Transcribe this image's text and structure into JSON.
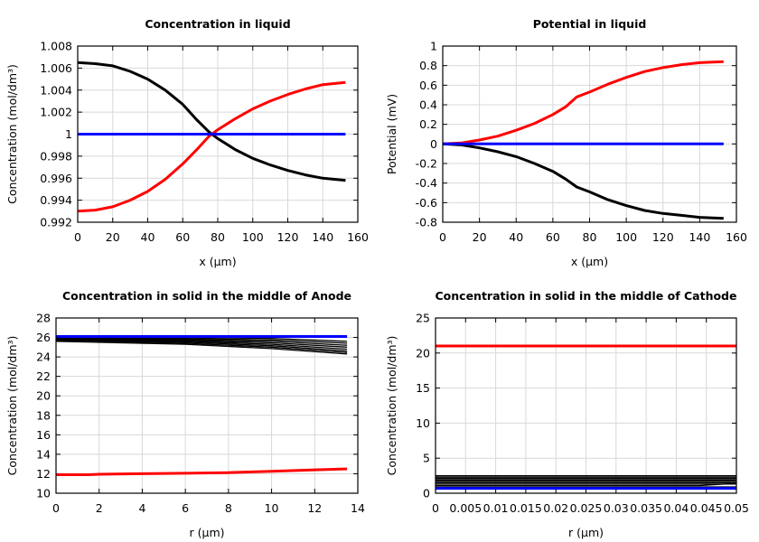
{
  "chart_data": [
    {
      "type": "line",
      "title": "Concentration in liquid",
      "xlabel": "x (µm)",
      "ylabel": "Concentration (mol/dm³)",
      "xlim": [
        0,
        160
      ],
      "ylim": [
        0.992,
        1.008
      ],
      "xticks": [
        0,
        20,
        40,
        60,
        80,
        100,
        120,
        140,
        160
      ],
      "xtick_labels": [
        "0",
        "20",
        "40",
        "60",
        "80",
        "100",
        "120",
        "140",
        "160"
      ],
      "yticks": [
        0.992,
        0.994,
        0.996,
        0.998,
        1,
        1.002,
        1.004,
        1.006,
        1.008
      ],
      "ytick_labels": [
        "0.992",
        "0.994",
        "0.996",
        "0.998",
        "1",
        "1.002",
        "1.004",
        "1.006",
        "1.008"
      ],
      "grid": true,
      "series": [
        {
          "color": "#000000",
          "x": [
            0,
            10,
            20,
            30,
            40,
            50,
            60,
            68,
            75,
            80,
            90,
            100,
            110,
            120,
            130,
            140,
            153
          ],
          "y": [
            1.0065,
            1.0064,
            1.0062,
            1.0057,
            1.005,
            1.004,
            1.0027,
            1.0013,
            1.0002,
            0.9996,
            0.9986,
            0.9978,
            0.9972,
            0.9967,
            0.9963,
            0.996,
            0.9958
          ]
        },
        {
          "color": "#ff0000",
          "x": [
            0,
            10,
            20,
            30,
            40,
            50,
            60,
            68,
            75,
            80,
            90,
            100,
            110,
            120,
            130,
            140,
            153
          ],
          "y": [
            0.993,
            0.9931,
            0.9934,
            0.994,
            0.9948,
            0.9959,
            0.9973,
            0.9986,
            0.9998,
            1.0004,
            1.0014,
            1.0023,
            1.003,
            1.0036,
            1.0041,
            1.0045,
            1.0047
          ]
        },
        {
          "color": "#0000ff",
          "x": [
            0,
            153
          ],
          "y": [
            1,
            1
          ]
        }
      ]
    },
    {
      "type": "line",
      "title": "Potential in liquid",
      "xlabel": "x (µm)",
      "ylabel": "Potential (mV)",
      "xlim": [
        0,
        160
      ],
      "ylim": [
        -0.8,
        1
      ],
      "xticks": [
        0,
        20,
        40,
        60,
        80,
        100,
        120,
        140,
        160
      ],
      "xtick_labels": [
        "0",
        "20",
        "40",
        "60",
        "80",
        "100",
        "120",
        "140",
        "160"
      ],
      "yticks": [
        -0.8,
        -0.6,
        -0.4,
        -0.2,
        0,
        0.2,
        0.4,
        0.6,
        0.8,
        1
      ],
      "ytick_labels": [
        "-0.8",
        "-0.6",
        "-0.4",
        "-0.2",
        "0",
        "0.2",
        "0.4",
        "0.6",
        "0.8",
        "1"
      ],
      "grid": true,
      "series": [
        {
          "color": "#ff0000",
          "x": [
            0,
            10,
            20,
            30,
            40,
            50,
            60,
            67,
            73,
            80,
            90,
            100,
            110,
            120,
            130,
            140,
            153
          ],
          "y": [
            0,
            0.01,
            0.04,
            0.08,
            0.14,
            0.21,
            0.3,
            0.38,
            0.48,
            0.53,
            0.61,
            0.68,
            0.74,
            0.78,
            0.81,
            0.83,
            0.84
          ]
        },
        {
          "color": "#000000",
          "x": [
            0,
            10,
            20,
            30,
            40,
            50,
            60,
            67,
            73,
            80,
            90,
            100,
            110,
            120,
            130,
            140,
            153
          ],
          "y": [
            0,
            -0.01,
            -0.04,
            -0.08,
            -0.13,
            -0.2,
            -0.28,
            -0.36,
            -0.44,
            -0.49,
            -0.57,
            -0.63,
            -0.68,
            -0.71,
            -0.73,
            -0.75,
            -0.76
          ]
        },
        {
          "color": "#0000ff",
          "x": [
            0,
            153
          ],
          "y": [
            0,
            0
          ]
        }
      ]
    },
    {
      "type": "line",
      "title": "Concentration in solid in the middle of Anode",
      "xlabel": "r (µm)",
      "ylabel": "Concentration (mol/dm³)",
      "xlim": [
        0,
        14
      ],
      "ylim": [
        10,
        28
      ],
      "xticks": [
        0,
        2,
        4,
        6,
        8,
        10,
        12,
        14
      ],
      "xtick_labels": [
        "0",
        "2",
        "4",
        "6",
        "8",
        "10",
        "12",
        "14"
      ],
      "yticks": [
        10,
        12,
        14,
        16,
        18,
        20,
        22,
        24,
        26,
        28
      ],
      "ytick_labels": [
        "10",
        "12",
        "14",
        "16",
        "18",
        "20",
        "22",
        "24",
        "26",
        "28"
      ],
      "grid": true,
      "series": [
        {
          "color": "#000000",
          "thin": true,
          "x": [
            0,
            6,
            10,
            13.5
          ],
          "y": [
            26.0,
            26.0,
            25.9,
            25.6
          ]
        },
        {
          "color": "#000000",
          "thin": true,
          "x": [
            0,
            6,
            10,
            13.5
          ],
          "y": [
            25.95,
            25.9,
            25.75,
            25.4
          ]
        },
        {
          "color": "#000000",
          "thin": true,
          "x": [
            0,
            6,
            10,
            13.5
          ],
          "y": [
            25.9,
            25.8,
            25.6,
            25.2
          ]
        },
        {
          "color": "#000000",
          "thin": true,
          "x": [
            0,
            6,
            10,
            13.5
          ],
          "y": [
            25.85,
            25.7,
            25.45,
            25.0
          ]
        },
        {
          "color": "#000000",
          "thin": true,
          "x": [
            0,
            6,
            10,
            13.5
          ],
          "y": [
            25.8,
            25.6,
            25.3,
            24.8
          ]
        },
        {
          "color": "#000000",
          "thin": true,
          "x": [
            0,
            6,
            10,
            13.5
          ],
          "y": [
            25.75,
            25.5,
            25.15,
            24.6
          ]
        },
        {
          "color": "#000000",
          "thin": true,
          "x": [
            0,
            6,
            10,
            13.5
          ],
          "y": [
            25.7,
            25.4,
            25.0,
            24.45
          ]
        },
        {
          "color": "#000000",
          "thin": true,
          "x": [
            0,
            6,
            10,
            13.5
          ],
          "y": [
            25.6,
            25.3,
            24.85,
            24.3
          ]
        },
        {
          "color": "#0000ff",
          "x": [
            0,
            13.5
          ],
          "y": [
            26.1,
            26.1
          ]
        },
        {
          "color": "#ff0000",
          "x": [
            0,
            1.5,
            2,
            4,
            6,
            8,
            10,
            12,
            13.5
          ],
          "y": [
            11.9,
            11.9,
            11.95,
            12.0,
            12.05,
            12.12,
            12.25,
            12.4,
            12.5
          ]
        }
      ]
    },
    {
      "type": "line",
      "title": "Concentration in solid in the middle of Cathode",
      "xlabel": "r (µm)",
      "ylabel": "Concentration (mol/dm³)",
      "xlim": [
        0,
        0.05
      ],
      "ylim": [
        0,
        25
      ],
      "xticks": [
        0,
        0.005,
        0.01,
        0.015,
        0.02,
        0.025,
        0.03,
        0.035,
        0.04,
        0.045,
        0.05
      ],
      "xtick_labels": [
        "0",
        "0.005",
        "0.01",
        "0.015",
        "0.02",
        "0.025",
        "0.03",
        "0.035",
        "0.04",
        "0.045",
        "0.05"
      ],
      "yticks": [
        0,
        5,
        10,
        15,
        20,
        25
      ],
      "ytick_labels": [
        "0",
        "5",
        "10",
        "15",
        "20",
        "25"
      ],
      "grid": true,
      "series": [
        {
          "color": "#000000",
          "thin": true,
          "x": [
            0,
            0.05
          ],
          "y": [
            2.5,
            2.5
          ]
        },
        {
          "color": "#000000",
          "thin": true,
          "x": [
            0,
            0.05
          ],
          "y": [
            2.3,
            2.3
          ]
        },
        {
          "color": "#000000",
          "thin": true,
          "x": [
            0,
            0.05
          ],
          "y": [
            2.1,
            2.1
          ]
        },
        {
          "color": "#000000",
          "thin": true,
          "x": [
            0,
            0.05
          ],
          "y": [
            1.9,
            1.9
          ]
        },
        {
          "color": "#000000",
          "thin": true,
          "x": [
            0,
            0.05
          ],
          "y": [
            1.7,
            1.7
          ]
        },
        {
          "color": "#000000",
          "thin": true,
          "x": [
            0,
            0.05
          ],
          "y": [
            1.5,
            1.5
          ]
        },
        {
          "color": "#000000",
          "thin": true,
          "x": [
            0,
            0.05
          ],
          "y": [
            1.3,
            1.3
          ]
        },
        {
          "color": "#000000",
          "thin": true,
          "x": [
            0,
            0.044,
            0.05
          ],
          "y": [
            1.1,
            1.1,
            1.4
          ]
        },
        {
          "color": "#000000",
          "thin": true,
          "x": [
            0,
            0.05
          ],
          "y": [
            0.9,
            0.9
          ]
        },
        {
          "color": "#ff0000",
          "x": [
            0,
            0.05
          ],
          "y": [
            21,
            21
          ]
        },
        {
          "color": "#0000ff",
          "x": [
            0,
            0.05
          ],
          "y": [
            0.7,
            0.7
          ]
        }
      ]
    }
  ]
}
